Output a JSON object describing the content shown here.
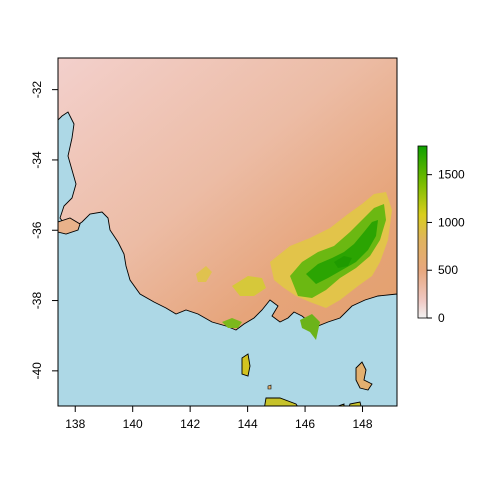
{
  "chart_data": {
    "type": "heatmap",
    "title": "",
    "xlabel": "",
    "ylabel": "",
    "xlim": [
      137.4,
      149.2
    ],
    "ylim": [
      -41,
      -31.1
    ],
    "x_ticks": [
      138,
      140,
      142,
      144,
      146,
      148
    ],
    "y_ticks": [
      -32,
      -34,
      -36,
      -38,
      -40
    ],
    "x_tick_labels": [
      "138",
      "140",
      "142",
      "144",
      "146",
      "148"
    ],
    "y_tick_labels": [
      "-32",
      "-34",
      "-36",
      "-38",
      "-40"
    ],
    "legend": {
      "position": "right",
      "min": 0,
      "max": 1800,
      "ticks": [
        0,
        500,
        1000,
        1500
      ],
      "tick_labels": [
        "0",
        "500",
        "1000",
        "1500"
      ]
    },
    "colors": {
      "sea": "#add8e6",
      "low": "#f2cac8",
      "mid_low": "#e8a478",
      "mid": "#e3c24b",
      "high": "#25a800",
      "coast": "#000000"
    }
  }
}
